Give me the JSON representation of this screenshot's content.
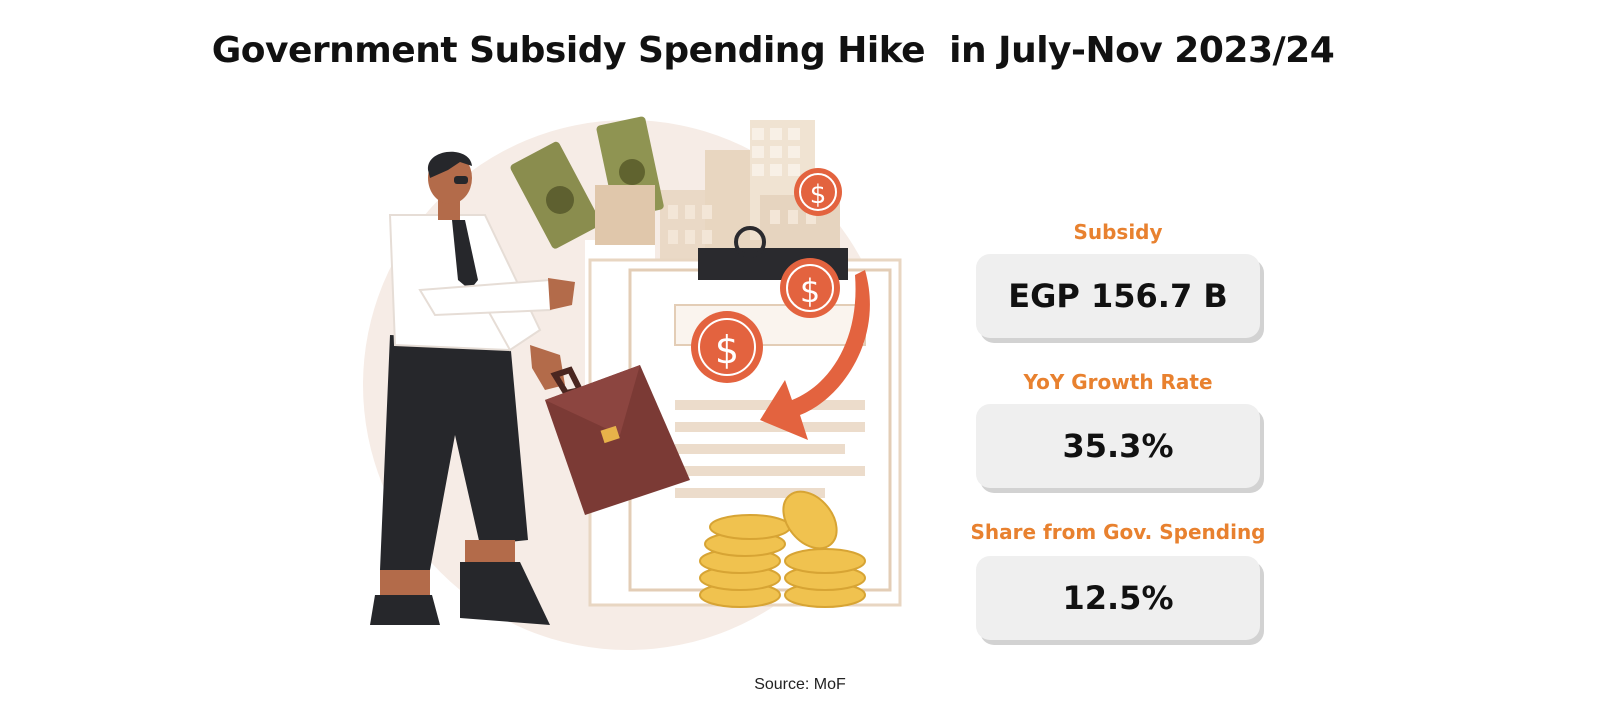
{
  "title": "Government Subsidy Spending Hike  in July-Nov 2023/24",
  "stats": [
    {
      "label": "Subsidy",
      "value": "EGP 156.7 B"
    },
    {
      "label": "YoY Growth Rate",
      "value": "35.3%"
    },
    {
      "label": "Share from Gov. Spending",
      "value": "12.5%"
    }
  ],
  "source": "Source: MoF",
  "colors": {
    "accent": "#e8812f",
    "card_bg": "#efefef",
    "coin_red": "#e3633f",
    "gold": "#f0c24f"
  },
  "illustration": {
    "description_icons": [
      "businessman-icon",
      "briefcase-icon",
      "dollar-coin-icon",
      "banknote-icon",
      "gold-coins-icon",
      "arrow-icon",
      "clipboard-icon"
    ]
  }
}
